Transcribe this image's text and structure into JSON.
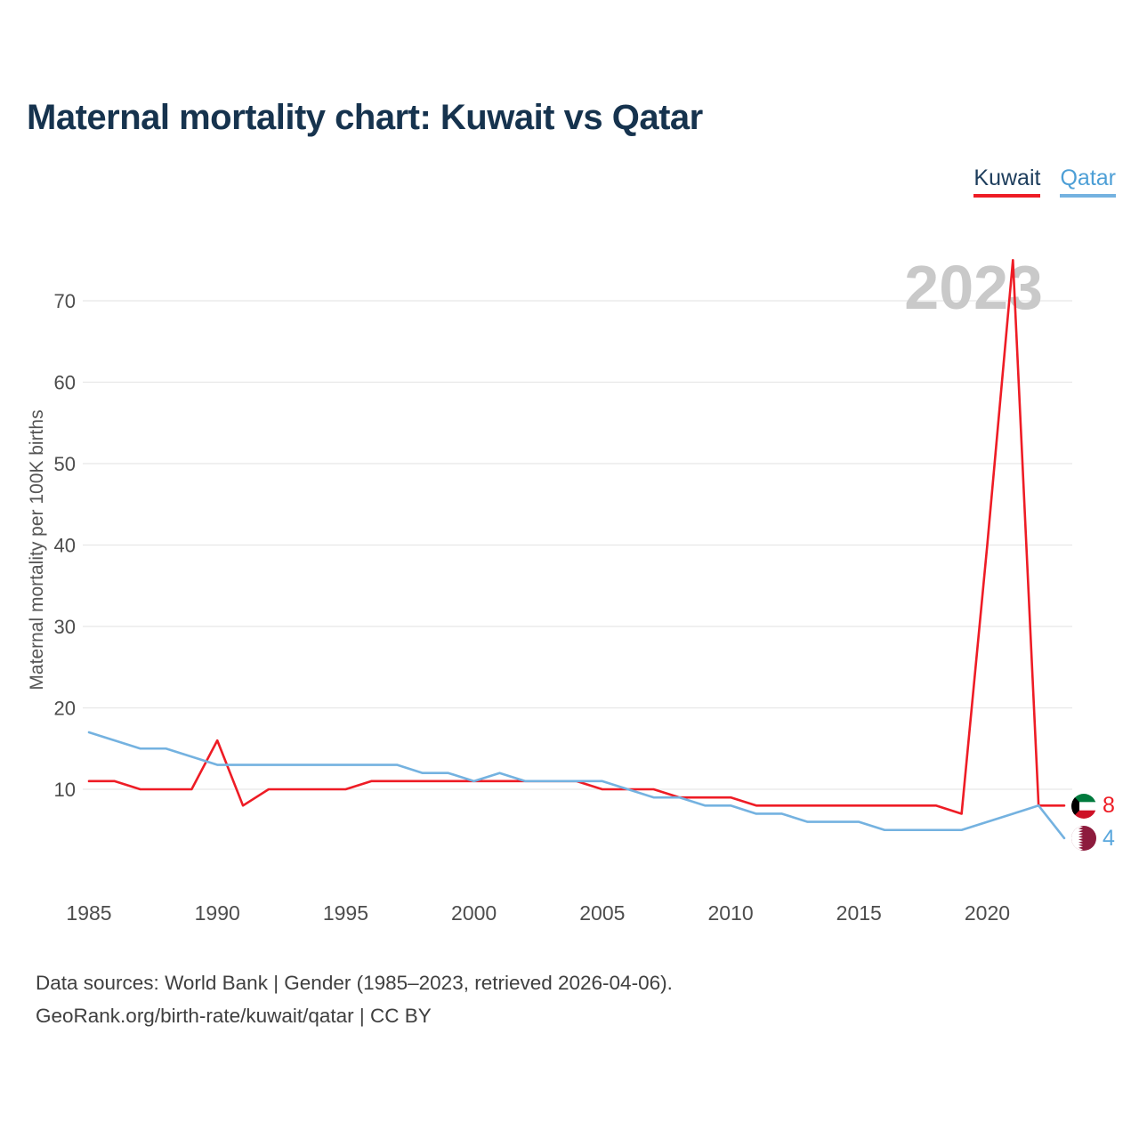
{
  "page": {
    "title": "Maternal mortality chart: Kuwait vs Qatar",
    "watermark": "2023",
    "footer_line1": "Data sources: World Bank | Gender (1985–2023, retrieved 2026-04-06).",
    "footer_line2": "GeoRank.org/birth-rate/kuwait/qatar | CC BY"
  },
  "legend": [
    {
      "label": "Kuwait",
      "color": "#ee1c25"
    },
    {
      "label": "Qatar",
      "color": "#74b2e0"
    }
  ],
  "chart_data": {
    "type": "line",
    "title": "Maternal mortality chart: Kuwait vs Qatar",
    "xlabel": "",
    "ylabel": "Maternal mortality per 100K births",
    "x": [
      1985,
      1986,
      1987,
      1988,
      1989,
      1990,
      1991,
      1992,
      1993,
      1994,
      1995,
      1996,
      1997,
      1998,
      1999,
      2000,
      2001,
      2002,
      2003,
      2004,
      2005,
      2006,
      2007,
      2008,
      2009,
      2010,
      2011,
      2012,
      2013,
      2014,
      2015,
      2016,
      2017,
      2018,
      2019,
      2020,
      2021,
      2022,
      2023
    ],
    "x_ticks": [
      1985,
      1990,
      1995,
      2000,
      2005,
      2010,
      2015,
      2020
    ],
    "y_ticks": [
      10,
      20,
      30,
      40,
      50,
      60,
      70
    ],
    "ylim": [
      2,
      77
    ],
    "grid": "horizontal",
    "legend_position": "top-right",
    "series": [
      {
        "name": "Kuwait",
        "color": "#ee1c25",
        "end_label": "8",
        "values": [
          11,
          11,
          10,
          10,
          10,
          16,
          8,
          10,
          10,
          10,
          10,
          11,
          11,
          11,
          11,
          11,
          11,
          11,
          11,
          11,
          10,
          10,
          10,
          9,
          9,
          9,
          8,
          8,
          8,
          8,
          8,
          8,
          8,
          8,
          7,
          40,
          75,
          8,
          8
        ]
      },
      {
        "name": "Qatar",
        "color": "#74b2e0",
        "end_label": "4",
        "values": [
          17,
          16,
          15,
          15,
          14,
          13,
          13,
          13,
          13,
          13,
          13,
          13,
          13,
          12,
          12,
          11,
          12,
          11,
          11,
          11,
          11,
          10,
          9,
          9,
          8,
          8,
          7,
          7,
          6,
          6,
          6,
          5,
          5,
          5,
          5,
          6,
          7,
          8,
          4
        ]
      }
    ]
  }
}
